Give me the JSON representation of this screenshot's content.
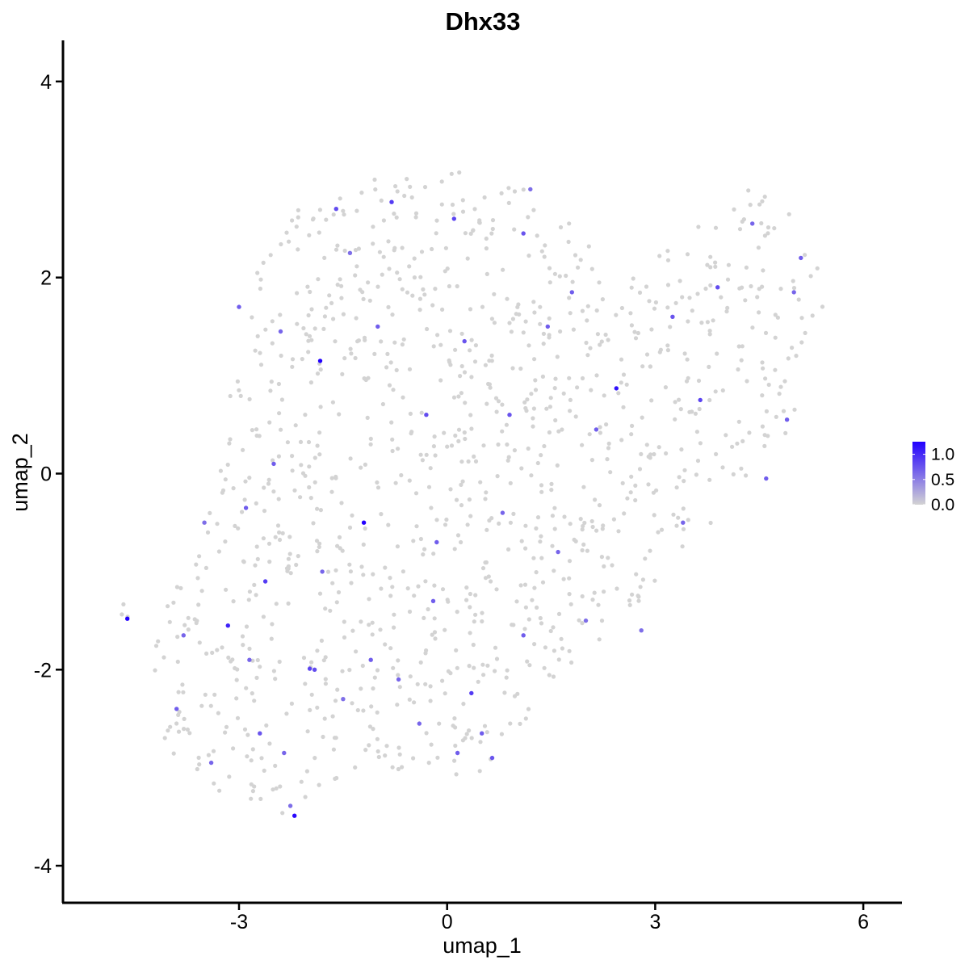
{
  "chart_data": {
    "type": "scatter",
    "title": "Dhx33",
    "xlabel": "umap_1",
    "ylabel": "umap_2",
    "xlim": [
      -5.3,
      6.5
    ],
    "ylim": [
      -4.35,
      4.4
    ],
    "x_ticks": [
      -3,
      0,
      3,
      6
    ],
    "x_tick_labels": [
      "-3",
      "0",
      "3",
      "6"
    ],
    "y_ticks": [
      -4,
      -2,
      0,
      2,
      4
    ],
    "y_tick_labels": [
      "-4",
      "-2",
      "0",
      "2",
      "4"
    ],
    "grid": false,
    "legend": {
      "position": "right",
      "type": "colorbar",
      "low_color": "#d3d3d3",
      "high_color": "#2200ff",
      "ticks": [
        0.0,
        0.5,
        1.0
      ],
      "tick_labels": [
        "0.0",
        "0.5",
        "1.0"
      ],
      "range": [
        0,
        1.25
      ]
    },
    "background_points_estimated": 1150,
    "expressing_points": [
      {
        "x": -4.61,
        "y": -1.48,
        "value": 1.25
      },
      {
        "x": -3.16,
        "y": -1.55,
        "value": 1.05
      },
      {
        "x": -2.2,
        "y": -3.49,
        "value": 1.2
      },
      {
        "x": -2.26,
        "y": -3.39,
        "value": 0.6
      },
      {
        "x": -1.83,
        "y": 1.15,
        "value": 1.25
      },
      {
        "x": -1.2,
        "y": -0.5,
        "value": 1.25
      },
      {
        "x": 2.44,
        "y": 0.87,
        "value": 1.15
      },
      {
        "x": 0.35,
        "y": -2.24,
        "value": 0.9
      },
      {
        "x": -1.98,
        "y": -1.99,
        "value": 0.85
      },
      {
        "x": -1.91,
        "y": -2.0,
        "value": 0.8
      },
      {
        "x": 0.65,
        "y": -2.9,
        "value": 0.75
      },
      {
        "x": 0.15,
        "y": -2.85,
        "value": 0.7
      },
      {
        "x": -2.62,
        "y": -1.1,
        "value": 0.9
      },
      {
        "x": -2.9,
        "y": -0.35,
        "value": 0.7
      },
      {
        "x": -2.7,
        "y": -2.65,
        "value": 0.75
      },
      {
        "x": -1.6,
        "y": 2.7,
        "value": 0.8
      },
      {
        "x": -0.8,
        "y": 2.77,
        "value": 0.9
      },
      {
        "x": 0.1,
        "y": 2.6,
        "value": 0.85
      },
      {
        "x": 1.1,
        "y": 2.45,
        "value": 0.75
      },
      {
        "x": 1.2,
        "y": 2.9,
        "value": 0.6
      },
      {
        "x": 4.4,
        "y": 2.55,
        "value": 0.65
      },
      {
        "x": 5.1,
        "y": 2.2,
        "value": 0.7
      },
      {
        "x": 3.9,
        "y": 1.9,
        "value": 0.8
      },
      {
        "x": 3.25,
        "y": 1.6,
        "value": 0.75
      },
      {
        "x": 3.65,
        "y": 0.75,
        "value": 0.85
      },
      {
        "x": 1.8,
        "y": 1.85,
        "value": 0.7
      },
      {
        "x": 0.9,
        "y": 0.6,
        "value": 0.75
      },
      {
        "x": -0.3,
        "y": 0.6,
        "value": 0.8
      },
      {
        "x": -1.0,
        "y": 1.5,
        "value": 0.7
      },
      {
        "x": -2.4,
        "y": 1.45,
        "value": 0.65
      },
      {
        "x": -3.0,
        "y": 1.7,
        "value": 0.7
      },
      {
        "x": -1.4,
        "y": 2.25,
        "value": 0.6
      },
      {
        "x": -2.5,
        "y": 0.1,
        "value": 0.7
      },
      {
        "x": -3.5,
        "y": -0.5,
        "value": 0.6
      },
      {
        "x": -3.8,
        "y": -1.65,
        "value": 0.65
      },
      {
        "x": -3.9,
        "y": -2.4,
        "value": 0.7
      },
      {
        "x": -3.4,
        "y": -2.95,
        "value": 0.65
      },
      {
        "x": -2.35,
        "y": -2.85,
        "value": 0.65
      },
      {
        "x": -1.5,
        "y": -2.3,
        "value": 0.6
      },
      {
        "x": -0.7,
        "y": -2.1,
        "value": 0.65
      },
      {
        "x": -0.2,
        "y": -1.3,
        "value": 0.7
      },
      {
        "x": 0.8,
        "y": -0.4,
        "value": 0.65
      },
      {
        "x": 1.6,
        "y": -0.8,
        "value": 0.65
      },
      {
        "x": 2.0,
        "y": -1.5,
        "value": 0.6
      },
      {
        "x": 2.8,
        "y": -1.6,
        "value": 0.6
      },
      {
        "x": 3.4,
        "y": -0.5,
        "value": 0.65
      },
      {
        "x": 4.6,
        "y": -0.05,
        "value": 0.7
      },
      {
        "x": 4.9,
        "y": 0.55,
        "value": 0.7
      },
      {
        "x": 5.0,
        "y": 1.85,
        "value": 0.65
      },
      {
        "x": 2.15,
        "y": 0.45,
        "value": 0.7
      },
      {
        "x": 1.45,
        "y": 1.5,
        "value": 0.7
      },
      {
        "x": 0.25,
        "y": 1.35,
        "value": 0.75
      },
      {
        "x": -0.15,
        "y": -0.7,
        "value": 0.7
      },
      {
        "x": -1.1,
        "y": -1.9,
        "value": 0.7
      },
      {
        "x": -1.8,
        "y": -1.0,
        "value": 0.65
      },
      {
        "x": -2.85,
        "y": -1.9,
        "value": 0.65
      },
      {
        "x": 1.1,
        "y": -1.65,
        "value": 0.7
      },
      {
        "x": 0.5,
        "y": -2.65,
        "value": 0.7
      },
      {
        "x": -0.4,
        "y": -2.55,
        "value": 0.65
      }
    ]
  }
}
